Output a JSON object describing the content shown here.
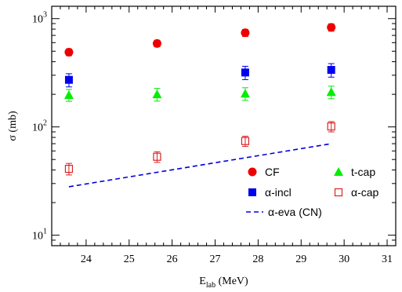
{
  "chart_data": {
    "type": "scatter",
    "title": "",
    "xlabel": "E",
    "xlabel_sub": "lab",
    "xlabel_unit": " (MeV)",
    "ylabel": "σ (mb)",
    "xlim": [
      23.2,
      31.2
    ],
    "ylim": [
      8,
      1300
    ],
    "yscale": "log",
    "x_ticks": [
      24,
      25,
      26,
      27,
      28,
      29,
      30,
      31
    ],
    "y_ticks": [
      {
        "base": "10",
        "exp": "1",
        "value": 10
      },
      {
        "base": "10",
        "exp": "2",
        "value": 100
      },
      {
        "base": "10",
        "exp": "3",
        "value": 1000
      }
    ],
    "legend_position": "bottom-right",
    "series": [
      {
        "name": "CF",
        "marker": "circle",
        "color": "#ee0000",
        "x": [
          23.6,
          25.65,
          27.7,
          29.7
        ],
        "y": [
          490,
          590,
          740,
          830
        ],
        "yerr": [
          35,
          40,
          55,
          65
        ]
      },
      {
        "name": "α-incl",
        "marker": "square",
        "color": "#0000ee",
        "x": [
          23.6,
          25.65,
          27.7,
          29.7
        ],
        "y": [
          272,
          0,
          318,
          336
        ],
        "yerr": [
          38,
          0,
          45,
          48
        ],
        "note_missing_index": 1
      },
      {
        "name": "t-cap",
        "marker": "triangle",
        "color": "#00ee00",
        "x": [
          23.6,
          25.65,
          27.7,
          29.7
        ],
        "y": [
          197,
          200,
          203,
          210
        ],
        "yerr": [
          25,
          27,
          27,
          28
        ]
      },
      {
        "name": "α-cap",
        "marker": "open-square",
        "color": "#dd2222",
        "x": [
          23.6,
          25.65,
          27.7,
          29.7
        ],
        "y": [
          41,
          53,
          74,
          101
        ],
        "yerr": [
          5,
          6,
          8,
          11
        ]
      },
      {
        "name": "α-eva (CN)",
        "marker": "dashed-line",
        "color": "#0000dd",
        "x": [
          23.6,
          29.7
        ],
        "y": [
          28,
          70
        ]
      }
    ]
  }
}
